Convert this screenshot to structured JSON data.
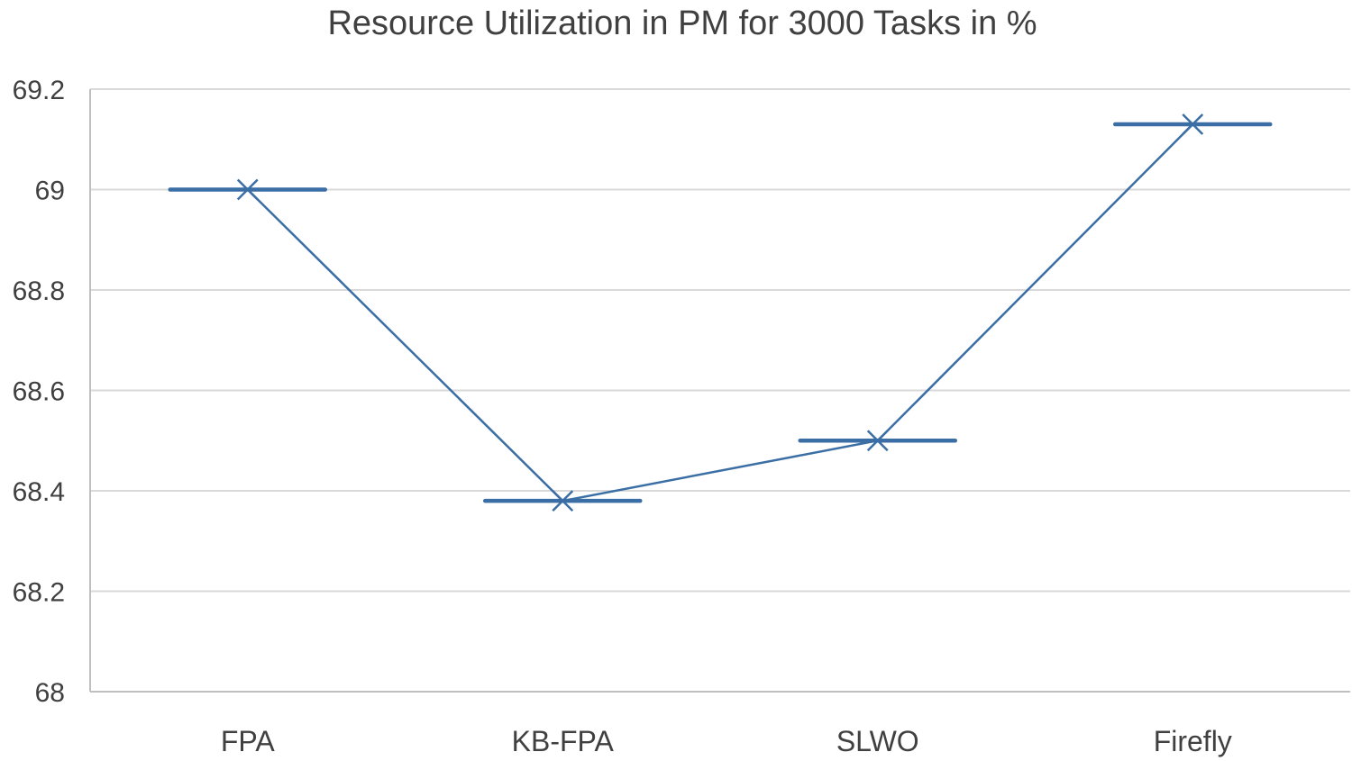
{
  "chart_data": {
    "type": "line",
    "title": "Resource Utilization in PM for 3000 Tasks in %",
    "xlabel": "",
    "ylabel": "",
    "categories": [
      "FPA",
      "KB-FPA",
      "SLWO",
      "Firefly"
    ],
    "series": [
      {
        "values": [
          69.0,
          68.38,
          68.5,
          69.13
        ]
      }
    ],
    "ylim": [
      68,
      69.2
    ],
    "yticks": [
      "68",
      "68.2",
      "68.4",
      "68.6",
      "68.8",
      "69",
      "69.2"
    ],
    "grid": true,
    "legend": "none",
    "marker": "x-with-horizontal-bar",
    "colors": {
      "series": "#3a6ea5",
      "grid": "#d9d9d9",
      "text": "#404040",
      "axis": "#bfbfbf"
    }
  }
}
